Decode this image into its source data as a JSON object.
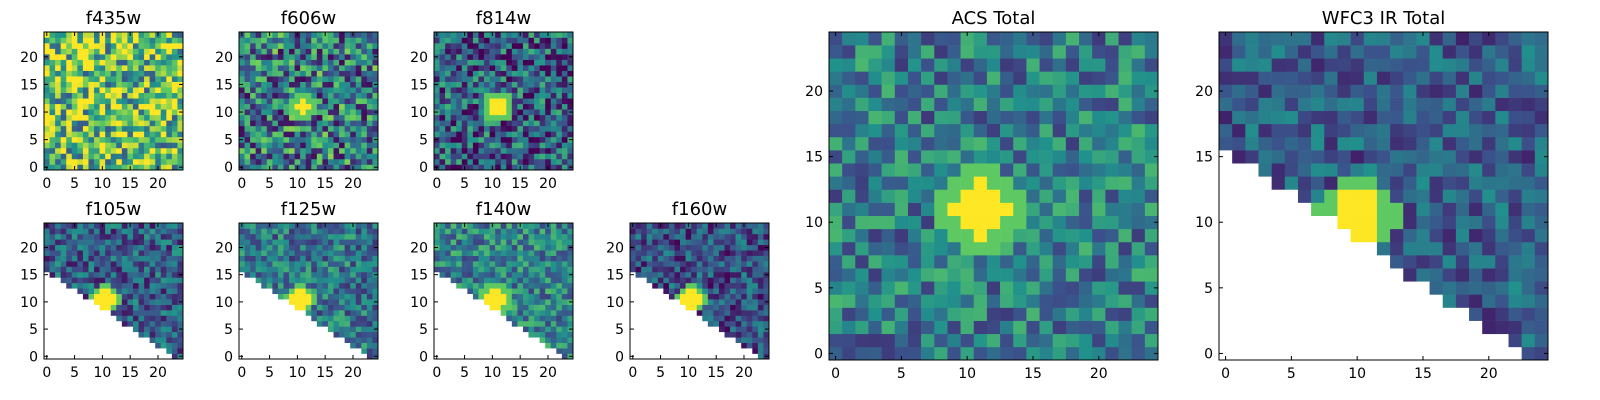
{
  "figure": {
    "colormap": "viridis",
    "background": "#ffffff",
    "masked_color": "#ffffff"
  },
  "chart_data": [
    {
      "type": "heatmap",
      "title": "f435w",
      "grid_size": 25,
      "xlim": [
        0,
        24
      ],
      "ylim": [
        0,
        24
      ],
      "xticks": [
        0,
        5,
        10,
        15,
        20
      ],
      "yticks": [
        0,
        5,
        10,
        15,
        20
      ],
      "xtick_labels": [
        "0",
        "5",
        "10",
        "15",
        "20"
      ],
      "ytick_labels": [
        "0",
        "5",
        "10",
        "15",
        "20"
      ],
      "colorscale": "viridis",
      "background_level": 0.72,
      "noise_amplitude": 0.45,
      "noise_seed": 11,
      "source": {
        "center": [
          11,
          11
        ],
        "radius": 1.5,
        "peak": 0.15
      },
      "masked_region": null
    },
    {
      "type": "heatmap",
      "title": "f606w",
      "grid_size": 25,
      "xlim": [
        0,
        24
      ],
      "ylim": [
        0,
        24
      ],
      "xticks": [
        0,
        5,
        10,
        15,
        20
      ],
      "yticks": [
        0,
        5,
        10,
        15,
        20
      ],
      "xtick_labels": [
        "0",
        "5",
        "10",
        "15",
        "20"
      ],
      "ytick_labels": [
        "0",
        "5",
        "10",
        "15",
        "20"
      ],
      "colorscale": "viridis",
      "background_level": 0.42,
      "noise_amplitude": 0.4,
      "noise_seed": 23,
      "source": {
        "center": [
          11,
          11
        ],
        "radius": 1.2,
        "peak": 1.0
      },
      "masked_region": null
    },
    {
      "type": "heatmap",
      "title": "f814w",
      "grid_size": 25,
      "xlim": [
        0,
        24
      ],
      "ylim": [
        0,
        24
      ],
      "xticks": [
        0,
        5,
        10,
        15,
        20
      ],
      "yticks": [
        0,
        5,
        10,
        15,
        20
      ],
      "xtick_labels": [
        "0",
        "5",
        "10",
        "15",
        "20"
      ],
      "ytick_labels": [
        "0",
        "5",
        "10",
        "15",
        "20"
      ],
      "colorscale": "viridis",
      "background_level": 0.3,
      "noise_amplitude": 0.35,
      "noise_seed": 37,
      "source": {
        "center": [
          11,
          11
        ],
        "radius": 1.6,
        "peak": 1.0
      },
      "masked_region": null
    },
    {
      "type": "heatmap",
      "title": "f105w",
      "grid_size": 25,
      "xlim": [
        0,
        24
      ],
      "ylim": [
        0,
        24
      ],
      "xticks": [
        0,
        5,
        10,
        15,
        20
      ],
      "yticks": [
        0,
        5,
        10,
        15,
        20
      ],
      "xtick_labels": [
        "0",
        "5",
        "10",
        "15",
        "20"
      ],
      "ytick_labels": [
        "0",
        "5",
        "10",
        "15",
        "20"
      ],
      "colorscale": "viridis",
      "background_level": 0.3,
      "noise_amplitude": 0.25,
      "noise_seed": 41,
      "source": {
        "center": [
          10.5,
          10.5
        ],
        "radius": 1.6,
        "peak": 1.0
      },
      "masked_region": "lower-left triangle"
    },
    {
      "type": "heatmap",
      "title": "f125w",
      "grid_size": 25,
      "xlim": [
        0,
        24
      ],
      "ylim": [
        0,
        24
      ],
      "xticks": [
        0,
        5,
        10,
        15,
        20
      ],
      "yticks": [
        0,
        5,
        10,
        15,
        20
      ],
      "xtick_labels": [
        "0",
        "5",
        "10",
        "15",
        "20"
      ],
      "ytick_labels": [
        "0",
        "5",
        "10",
        "15",
        "20"
      ],
      "colorscale": "viridis",
      "background_level": 0.4,
      "noise_amplitude": 0.25,
      "noise_seed": 53,
      "source": {
        "center": [
          10.5,
          10.5
        ],
        "radius": 1.6,
        "peak": 1.0
      },
      "masked_region": "lower-left triangle"
    },
    {
      "type": "heatmap",
      "title": "f140w",
      "grid_size": 25,
      "xlim": [
        0,
        24
      ],
      "ylim": [
        0,
        24
      ],
      "xticks": [
        0,
        5,
        10,
        15,
        20
      ],
      "yticks": [
        0,
        5,
        10,
        15,
        20
      ],
      "xtick_labels": [
        "0",
        "5",
        "10",
        "15",
        "20"
      ],
      "ytick_labels": [
        "0",
        "5",
        "10",
        "15",
        "20"
      ],
      "colorscale": "viridis",
      "background_level": 0.45,
      "noise_amplitude": 0.25,
      "noise_seed": 67,
      "source": {
        "center": [
          10.5,
          10.5
        ],
        "radius": 1.7,
        "peak": 1.0
      },
      "masked_region": "lower-left triangle"
    },
    {
      "type": "heatmap",
      "title": "f160w",
      "grid_size": 25,
      "xlim": [
        0,
        24
      ],
      "ylim": [
        0,
        24
      ],
      "xticks": [
        0,
        5,
        10,
        15,
        20
      ],
      "yticks": [
        0,
        5,
        10,
        15,
        20
      ],
      "xtick_labels": [
        "0",
        "5",
        "10",
        "15",
        "20"
      ],
      "ytick_labels": [
        "0",
        "5",
        "10",
        "15",
        "20"
      ],
      "colorscale": "viridis",
      "background_level": 0.25,
      "noise_amplitude": 0.25,
      "noise_seed": 79,
      "source": {
        "center": [
          10.5,
          10.5
        ],
        "radius": 1.6,
        "peak": 1.0
      },
      "masked_region": "lower-left triangle"
    },
    {
      "type": "heatmap",
      "title": "ACS Total",
      "grid_size": 25,
      "xlim": [
        0,
        24
      ],
      "ylim": [
        0,
        24
      ],
      "xticks": [
        0,
        5,
        10,
        15,
        20
      ],
      "yticks": [
        0,
        5,
        10,
        15,
        20
      ],
      "xtick_labels": [
        "0",
        "5",
        "10",
        "15",
        "20"
      ],
      "ytick_labels": [
        "0",
        "5",
        "10",
        "15",
        "20"
      ],
      "colorscale": "viridis",
      "background_level": 0.42,
      "noise_amplitude": 0.25,
      "noise_seed": 97,
      "source": {
        "center": [
          11,
          11
        ],
        "radius": 2.2,
        "peak": 1.0
      },
      "masked_region": null
    },
    {
      "type": "heatmap",
      "title": "WFC3 IR Total",
      "grid_size": 25,
      "xlim": [
        0,
        24
      ],
      "ylim": [
        0,
        24
      ],
      "xticks": [
        0,
        5,
        10,
        15,
        20
      ],
      "yticks": [
        0,
        5,
        10,
        15,
        20
      ],
      "xtick_labels": [
        "0",
        "5",
        "10",
        "15",
        "20"
      ],
      "ytick_labels": [
        "0",
        "5",
        "10",
        "15",
        "20"
      ],
      "colorscale": "viridis",
      "background_level": 0.3,
      "noise_amplitude": 0.2,
      "noise_seed": 113,
      "source": {
        "center": [
          10,
          10.5
        ],
        "radius": 1.9,
        "peak": 1.0
      },
      "masked_region": "lower-left triangle"
    }
  ]
}
